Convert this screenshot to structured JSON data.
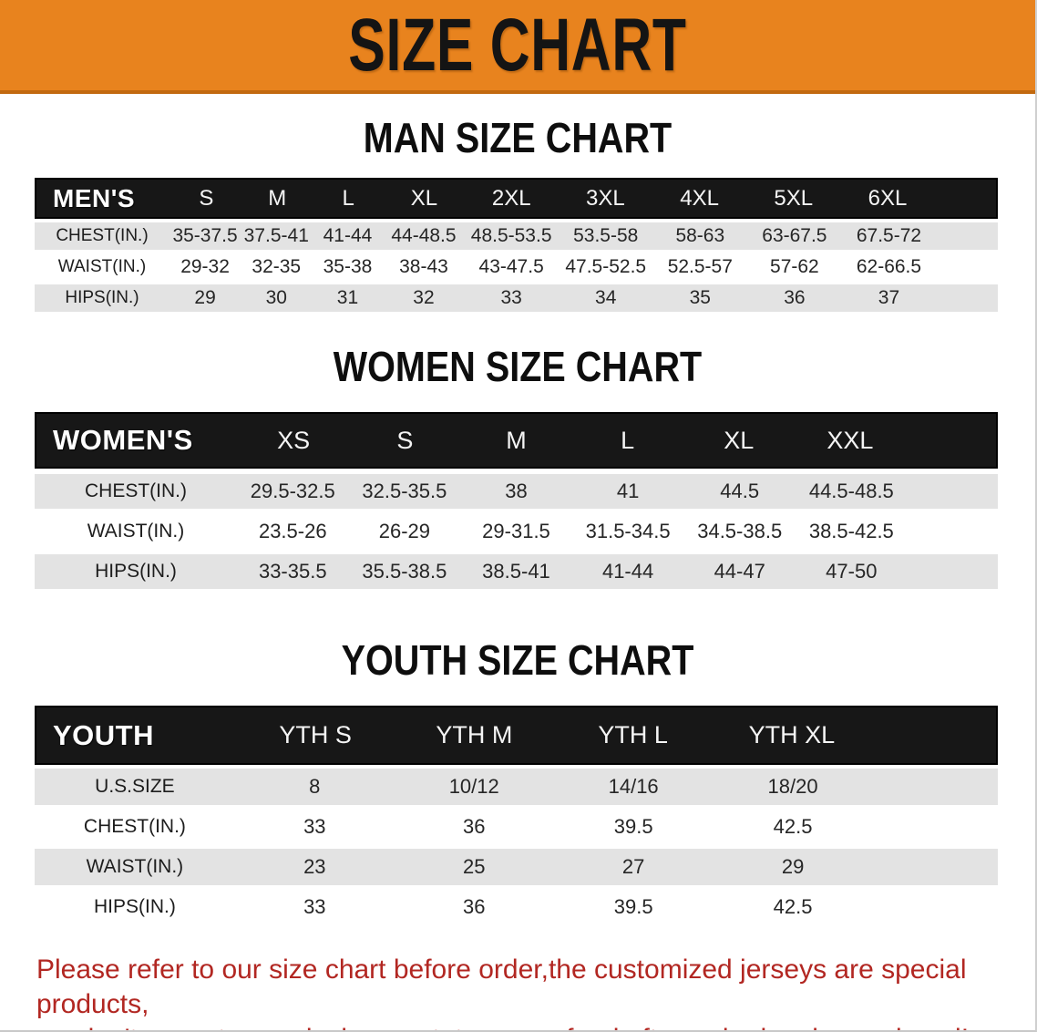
{
  "banner": {
    "title": "SIZE CHART"
  },
  "sections": [
    {
      "heading": "MAN SIZE CHART",
      "table": {
        "header": [
          "MEN'S",
          "S",
          "M",
          "L",
          "XL",
          "2XL",
          "3XL",
          "4XL",
          "5XL",
          "6XL"
        ],
        "rows": [
          [
            "CHEST(IN.)",
            "35-37.5",
            "37.5-41",
            "41-44",
            "44-48.5",
            "48.5-53.5",
            "53.5-58",
            "58-63",
            "63-67.5",
            "67.5-72"
          ],
          [
            "WAIST(IN.)",
            "29-32",
            "32-35",
            "35-38",
            "38-43",
            "43-47.5",
            "47.5-52.5",
            "52.5-57",
            "57-62",
            "62-66.5"
          ],
          [
            "HIPS(IN.)",
            "29",
            "30",
            "31",
            "32",
            "33",
            "34",
            "35",
            "36",
            "37"
          ]
        ]
      }
    },
    {
      "heading": "WOMEN SIZE CHART",
      "table": {
        "header": [
          "WOMEN'S",
          "XS",
          "S",
          "M",
          "L",
          "XL",
          "XXL"
        ],
        "rows": [
          [
            "CHEST(IN.)",
            "29.5-32.5",
            "32.5-35.5",
            "38",
            "41",
            "44.5",
            "44.5-48.5"
          ],
          [
            "WAIST(IN.)",
            "23.5-26",
            "26-29",
            "29-31.5",
            "31.5-34.5",
            "34.5-38.5",
            "38.5-42.5"
          ],
          [
            "HIPS(IN.)",
            "33-35.5",
            "35.5-38.5",
            "38.5-41",
            "41-44",
            "44-47",
            "47-50"
          ]
        ]
      }
    },
    {
      "heading": "YOUTH SIZE CHART",
      "table": {
        "header": [
          "YOUTH",
          "YTH S",
          "YTH M",
          "YTH L",
          "YTH XL"
        ],
        "rows": [
          [
            "U.S.SIZE",
            "8",
            "10/12",
            "14/16",
            "18/20"
          ],
          [
            "CHEST(IN.)",
            "33",
            "36",
            "39.5",
            "42.5"
          ],
          [
            "WAIST(IN.)",
            "23",
            "25",
            "27",
            "29"
          ],
          [
            "HIPS(IN.)",
            "33",
            "36",
            "39.5",
            "42.5"
          ]
        ]
      }
    }
  ],
  "footer": {
    "line1": "Please refer to our size chart before order,the customized jerseys are special products,",
    "line2": "we don't accept cancel, change, teturn or refund after order has been placed!"
  },
  "colors": {
    "banner_orange": "#e8831e",
    "banner_edge": "#c2690f",
    "header_black": "#171717",
    "row_gray": "#e3e3e3",
    "row_white": "#ffffff",
    "footer_red": "#b22722"
  }
}
